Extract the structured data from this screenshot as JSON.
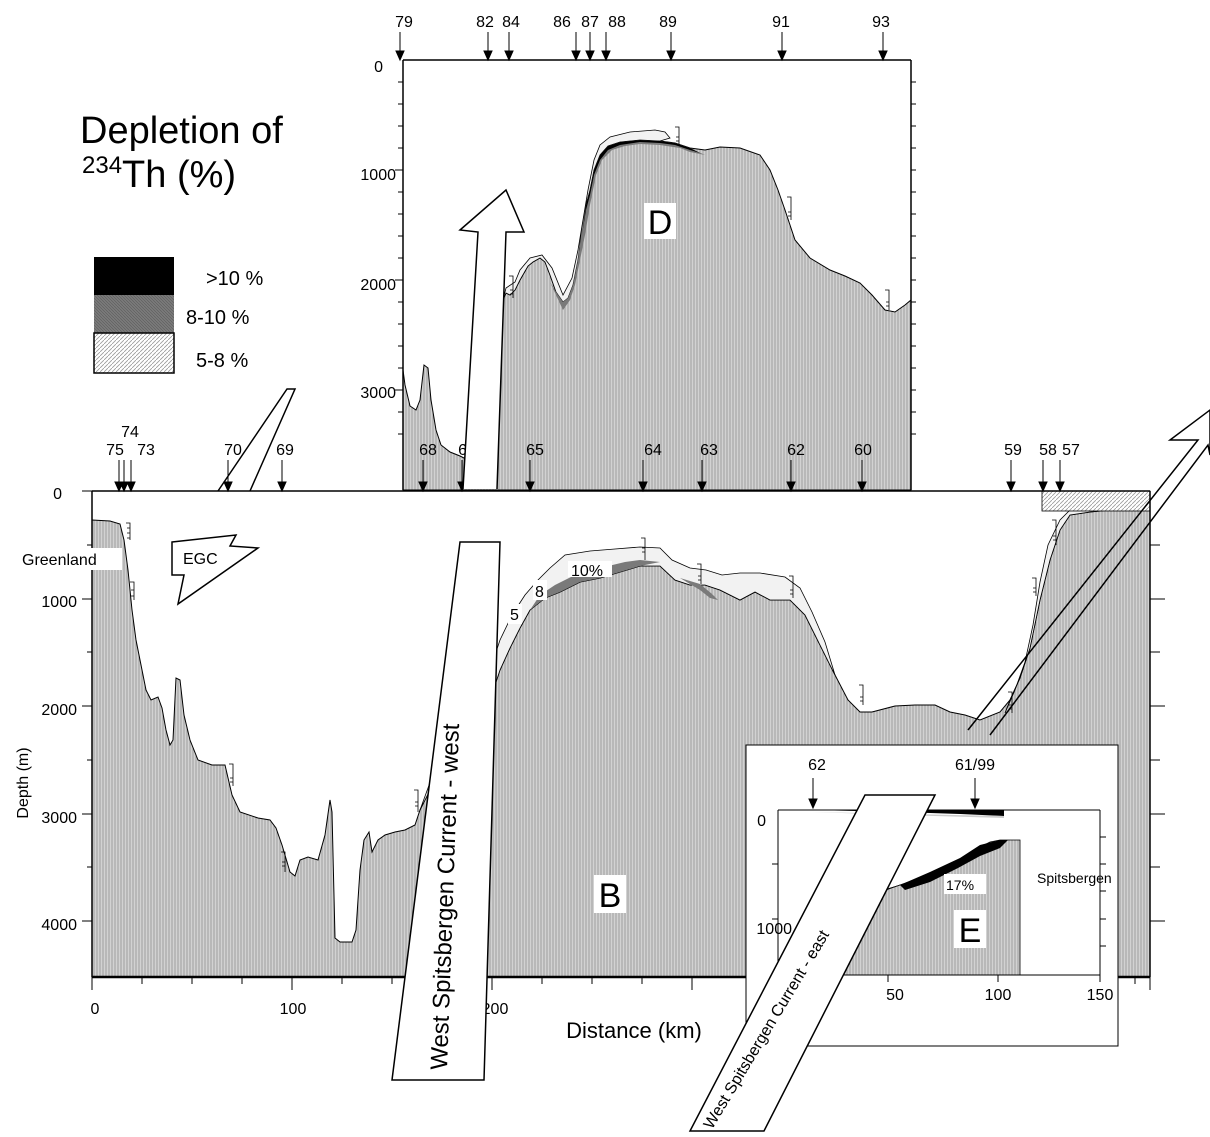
{
  "title": {
    "line1": "Depletion of",
    "line2_sup": "234",
    "line2_main": "Th (%)"
  },
  "legend": [
    {
      "label": ">10 %",
      "color": "#000000"
    },
    {
      "label": "8-10 %",
      "color": "#808080"
    },
    {
      "label": "5-8 %",
      "color": "#e4e4e4"
    }
  ],
  "colors": {
    "seafloor": "#c6c6c6",
    "band_light": "#e4e4e4",
    "band_mid": "#808080",
    "band_dark": "#000000"
  },
  "section_D": {
    "label": "D",
    "stations": [
      "79",
      "82",
      "84",
      "86",
      "87",
      "88",
      "89",
      "91",
      "93"
    ],
    "depth_ticks": [
      "0",
      "1000",
      "2000",
      "3000"
    ]
  },
  "section_B": {
    "label": "B",
    "stations_top": [
      "74"
    ],
    "stations": [
      "75",
      "73",
      "70",
      "69",
      "68",
      "67",
      "65",
      "64",
      "63",
      "62",
      "60",
      "59",
      "58",
      "57"
    ],
    "depth_ticks": [
      "0",
      "1000",
      "2000",
      "3000",
      "4000"
    ],
    "distance_ticks": [
      "0",
      "100",
      "200"
    ],
    "y_axis_label": "Depth (m)",
    "x_axis_label": "Distance (km)",
    "place_label": "Greenland",
    "percent_labels": [
      "5",
      "8",
      "10%"
    ]
  },
  "section_E": {
    "label": "E",
    "stations": [
      "62",
      "61/99"
    ],
    "depth_ticks": [
      "0",
      "1000"
    ],
    "distance_ticks": [
      "50",
      "100",
      "150"
    ],
    "place_label": "Spitsbergen",
    "percent_label": "17%"
  },
  "currents": {
    "egc": "EGC",
    "wsc_west": "West Spitsbergen Current - west",
    "wsc_east": "West Spitsbergen Current - east"
  }
}
